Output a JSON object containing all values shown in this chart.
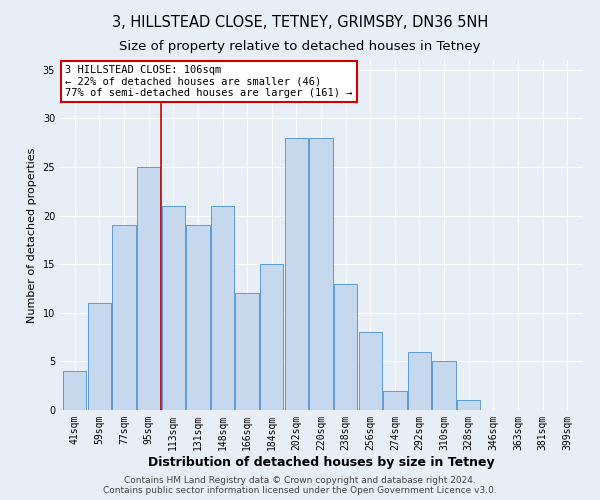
{
  "title1": "3, HILLSTEAD CLOSE, TETNEY, GRIMSBY, DN36 5NH",
  "title2": "Size of property relative to detached houses in Tetney",
  "xlabel": "Distribution of detached houses by size in Tetney",
  "ylabel": "Number of detached properties",
  "categories": [
    "41sqm",
    "59sqm",
    "77sqm",
    "95sqm",
    "113sqm",
    "131sqm",
    "148sqm",
    "166sqm",
    "184sqm",
    "202sqm",
    "220sqm",
    "238sqm",
    "256sqm",
    "274sqm",
    "292sqm",
    "310sqm",
    "328sqm",
    "346sqm",
    "363sqm",
    "381sqm",
    "399sqm"
  ],
  "values": [
    4,
    11,
    19,
    25,
    21,
    19,
    21,
    12,
    15,
    28,
    28,
    13,
    8,
    2,
    6,
    5,
    1,
    0,
    0,
    0,
    0
  ],
  "bar_color": "#c5d8ed",
  "bar_edge_color": "#5b9bd5",
  "vline_x": 3.5,
  "vline_color": "#cc0000",
  "annotation_text": "3 HILLSTEAD CLOSE: 106sqm\n← 22% of detached houses are smaller (46)\n77% of semi-detached houses are larger (161) →",
  "annotation_box_color": "white",
  "annotation_box_edge_color": "#cc0000",
  "ylim": [
    0,
    36
  ],
  "yticks": [
    0,
    5,
    10,
    15,
    20,
    25,
    30,
    35
  ],
  "background_color": "#e8eef5",
  "plot_background_color": "#e8eef5",
  "footer": "Contains HM Land Registry data © Crown copyright and database right 2024.\nContains public sector information licensed under the Open Government Licence v3.0.",
  "title1_fontsize": 10.5,
  "title2_fontsize": 9.5,
  "xlabel_fontsize": 9,
  "ylabel_fontsize": 8,
  "tick_fontsize": 7,
  "annotation_fontsize": 7.5,
  "footer_fontsize": 6.5
}
